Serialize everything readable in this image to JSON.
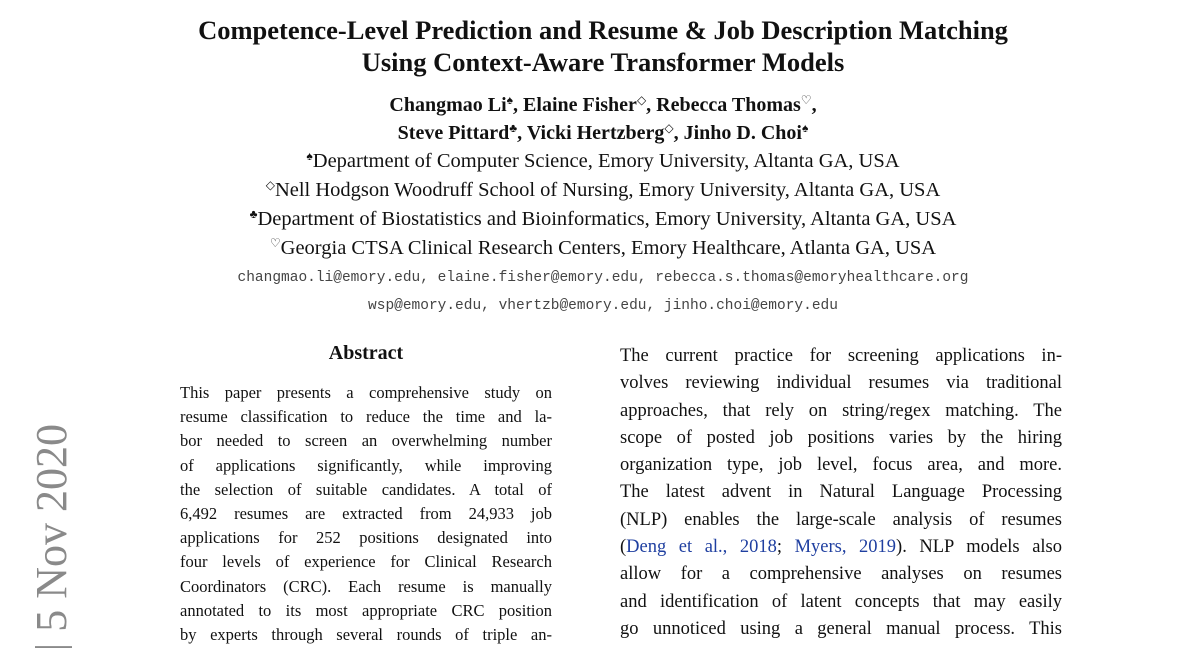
{
  "header": {
    "title_lines": [
      "Competence-Level Prediction and Resume & Job Description Matching",
      "Using Context-Aware Transformer Models"
    ],
    "author_lines": [
      [
        {
          "name": "Changmao Li",
          "mark": "♠",
          "sep": ","
        },
        {
          "name": "Elaine Fisher",
          "mark": "◇",
          "sep": ","
        },
        {
          "name": "Rebecca Thomas",
          "mark": "♡",
          "sep": ","
        }
      ],
      [
        {
          "name": "Steve Pittard",
          "mark": "♣",
          "sep": ","
        },
        {
          "name": "Vicki Hertzberg",
          "mark": "◇",
          "sep": ","
        },
        {
          "name": "Jinho D. Choi",
          "mark": "♠"
        }
      ]
    ],
    "affiliations": [
      {
        "mark": "♠",
        "text": "Department of Computer Science, Emory University, Altanta GA, USA"
      },
      {
        "mark": "◇",
        "text": "Nell Hodgson Woodruff School of Nursing, Emory University, Altanta GA, USA"
      },
      {
        "mark": "♣",
        "text": "Department of Biostatistics and Bioinformatics, Emory University, Altanta GA, USA"
      },
      {
        "mark": "♡",
        "text": "Georgia CTSA Clinical Research Centers, Emory Healthcare, Atlanta GA, USA"
      }
    ],
    "email_lines": [
      "changmao.li@emory.edu, elaine.fisher@emory.edu, rebecca.s.thomas@emoryhealthcare.org",
      "wsp@emory.edu, vhertzb@emory.edu, jinho.choi@emory.edu"
    ]
  },
  "abstract": {
    "heading": "Abstract",
    "lines": [
      "This paper presents a comprehensive study on",
      "resume classification to reduce the time and la-",
      "bor needed to screen an overwhelming number",
      "of applications significantly, while improving",
      "the selection of suitable candidates. A total of",
      "6,492 resumes are extracted from 24,933 job",
      "applications for 252 positions designated into",
      "four levels of experience for Clinical Research",
      "Coordinators (CRC). Each resume is manually",
      "annotated to its most appropriate CRC position",
      "by experts through several rounds of triple an-"
    ]
  },
  "introduction": {
    "lines": [
      [
        {
          "text": "The current practice for screening applications in-"
        }
      ],
      [
        {
          "text": "volves reviewing individual resumes via traditional"
        }
      ],
      [
        {
          "text": "approaches, that rely on string/regex matching. The"
        }
      ],
      [
        {
          "text": "scope of posted job positions varies by the hiring"
        }
      ],
      [
        {
          "text": "organization type, job level, focus area, and more."
        }
      ],
      [
        {
          "text": "The latest advent in Natural Language Processing"
        }
      ],
      [
        {
          "text": "(NLP) enables the large-scale analysis of resumes"
        }
      ],
      [
        {
          "text": "("
        },
        {
          "text": "Deng et al., 2018",
          "link": true
        },
        {
          "text": "; "
        },
        {
          "text": "Myers, 2019",
          "link": true
        },
        {
          "text": "). NLP models also"
        }
      ],
      [
        {
          "text": "allow for a comprehensive analyses on resumes"
        }
      ],
      [
        {
          "text": "and identification of latent concepts that may easily"
        }
      ],
      [
        {
          "text": "go unnoticed using a general manual process. This"
        }
      ]
    ]
  },
  "arxiv_stamp": "] 5 Nov 2020"
}
